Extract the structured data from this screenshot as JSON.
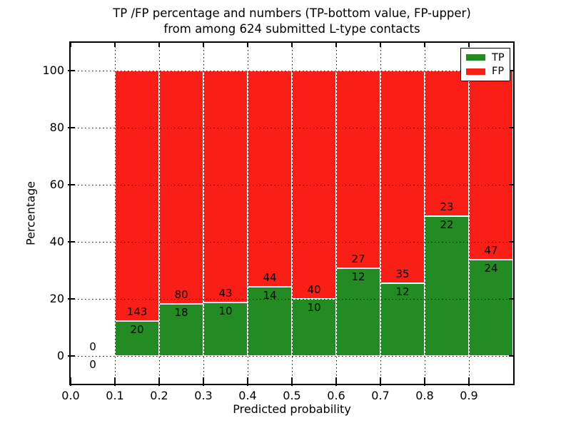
{
  "title": {
    "line1": "TP /FP percentage and numbers (TP-bottom value, FP-upper)",
    "line2": "from among 624 submitted L-type contacts"
  },
  "axes": {
    "xlabel": "Predicted probability",
    "ylabel": "Percentage"
  },
  "legend": {
    "items": [
      {
        "label": "TP",
        "color": "#228b22"
      },
      {
        "label": "FP",
        "color": "#fa1f16"
      }
    ]
  },
  "colors": {
    "tp": "#228b22",
    "fp": "#fa1f16",
    "grid": "#000000",
    "background": "#ffffff"
  },
  "chart_data": {
    "type": "bar",
    "subtype": "stacked-percentage",
    "title": "TP /FP percentage and numbers (TP-bottom value, FP-upper) from among 624 submitted L-type contacts",
    "xlabel": "Predicted probability",
    "ylabel": "Percentage",
    "xlim": [
      0.0,
      1.0
    ],
    "ylim": [
      -10,
      110
    ],
    "xticks": [
      "0.0",
      "0.1",
      "0.2",
      "0.3",
      "0.4",
      "0.5",
      "0.6",
      "0.7",
      "0.8",
      "0.9"
    ],
    "yticks": [
      "0",
      "20",
      "40",
      "60",
      "80",
      "100"
    ],
    "ytick_values": [
      0,
      20,
      40,
      60,
      80,
      100
    ],
    "grid": "dotted",
    "legend_position": "upper right",
    "total_contacts": 624,
    "series": [
      {
        "name": "TP",
        "color": "#228b22",
        "position": "bottom"
      },
      {
        "name": "FP",
        "color": "#fa1f16",
        "position": "top"
      }
    ],
    "bins": [
      {
        "range": [
          0.0,
          0.1
        ],
        "tp": 0,
        "fp": 0,
        "tp_pct": 0,
        "fp_pct": 0
      },
      {
        "range": [
          0.1,
          0.2
        ],
        "tp": 20,
        "fp": 143,
        "tp_pct": 12.27,
        "fp_pct": 87.73
      },
      {
        "range": [
          0.2,
          0.3
        ],
        "tp": 18,
        "fp": 80,
        "tp_pct": 18.37,
        "fp_pct": 81.63
      },
      {
        "range": [
          0.3,
          0.4
        ],
        "tp": 10,
        "fp": 43,
        "tp_pct": 18.87,
        "fp_pct": 81.13
      },
      {
        "range": [
          0.4,
          0.5
        ],
        "tp": 14,
        "fp": 44,
        "tp_pct": 24.14,
        "fp_pct": 75.86
      },
      {
        "range": [
          0.5,
          0.6
        ],
        "tp": 10,
        "fp": 40,
        "tp_pct": 20.0,
        "fp_pct": 80.0
      },
      {
        "range": [
          0.6,
          0.7
        ],
        "tp": 12,
        "fp": 27,
        "tp_pct": 30.77,
        "fp_pct": 69.23
      },
      {
        "range": [
          0.7,
          0.8
        ],
        "tp": 12,
        "fp": 35,
        "tp_pct": 25.53,
        "fp_pct": 74.47
      },
      {
        "range": [
          0.8,
          0.9
        ],
        "tp": 22,
        "fp": 23,
        "tp_pct": 48.89,
        "fp_pct": 51.11
      },
      {
        "range": [
          0.9,
          1.0
        ],
        "tp": 24,
        "fp": 47,
        "tp_pct": 33.8,
        "fp_pct": 66.2
      }
    ]
  }
}
